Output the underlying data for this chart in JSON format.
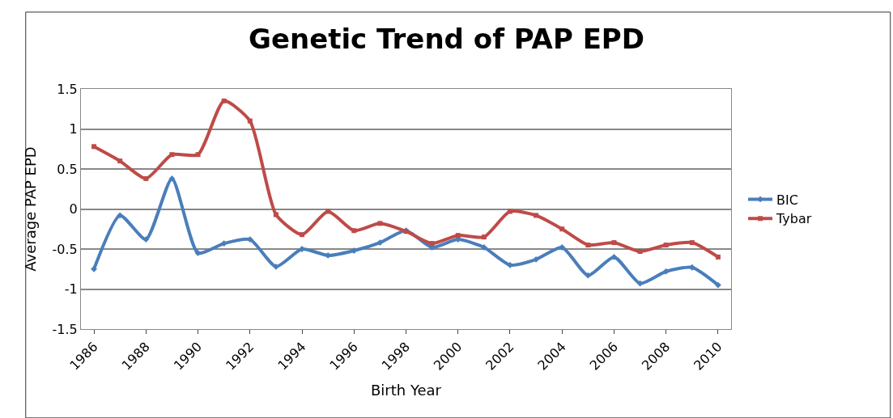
{
  "chart_data": {
    "type": "line",
    "title": "Genetic Trend of PAP EPD",
    "xlabel": "Birth Year",
    "ylabel": "Average PAP EPD",
    "categories": [
      "1986",
      null,
      "1988",
      null,
      "1990",
      null,
      "1992",
      null,
      "1994",
      null,
      "1996",
      null,
      "1998",
      null,
      "2000",
      null,
      "2002",
      null,
      "2004",
      null,
      "2006",
      null,
      "2008",
      null,
      "2010"
    ],
    "series": [
      {
        "name": "BIC",
        "color": "#4a7ebb",
        "marker": "diamond",
        "values": [
          -0.75,
          -0.08,
          -0.38,
          0.38,
          -0.55,
          -0.43,
          -0.38,
          -0.72,
          -0.5,
          -0.58,
          -0.52,
          -0.42,
          -0.27,
          -0.48,
          -0.38,
          -0.48,
          -0.7,
          -0.63,
          -0.48,
          -0.83,
          -0.6,
          -0.93,
          -0.78,
          -0.73,
          -0.95
        ]
      },
      {
        "name": "Tybar",
        "color": "#be4b48",
        "marker": "square",
        "values": [
          0.78,
          0.6,
          0.38,
          0.68,
          0.68,
          1.35,
          1.1,
          -0.07,
          -0.32,
          -0.03,
          -0.27,
          -0.18,
          -0.28,
          -0.43,
          -0.33,
          -0.35,
          -0.03,
          -0.08,
          -0.25,
          -0.45,
          -0.42,
          -0.53,
          -0.45,
          -0.42,
          -0.6
        ]
      }
    ],
    "ylim": [
      -1.5,
      1.5
    ],
    "yticks": [
      -1.5,
      -1,
      -0.5,
      0,
      0.5,
      1,
      1.5
    ],
    "grid": "y",
    "legend": "right",
    "line_style": "solid"
  }
}
